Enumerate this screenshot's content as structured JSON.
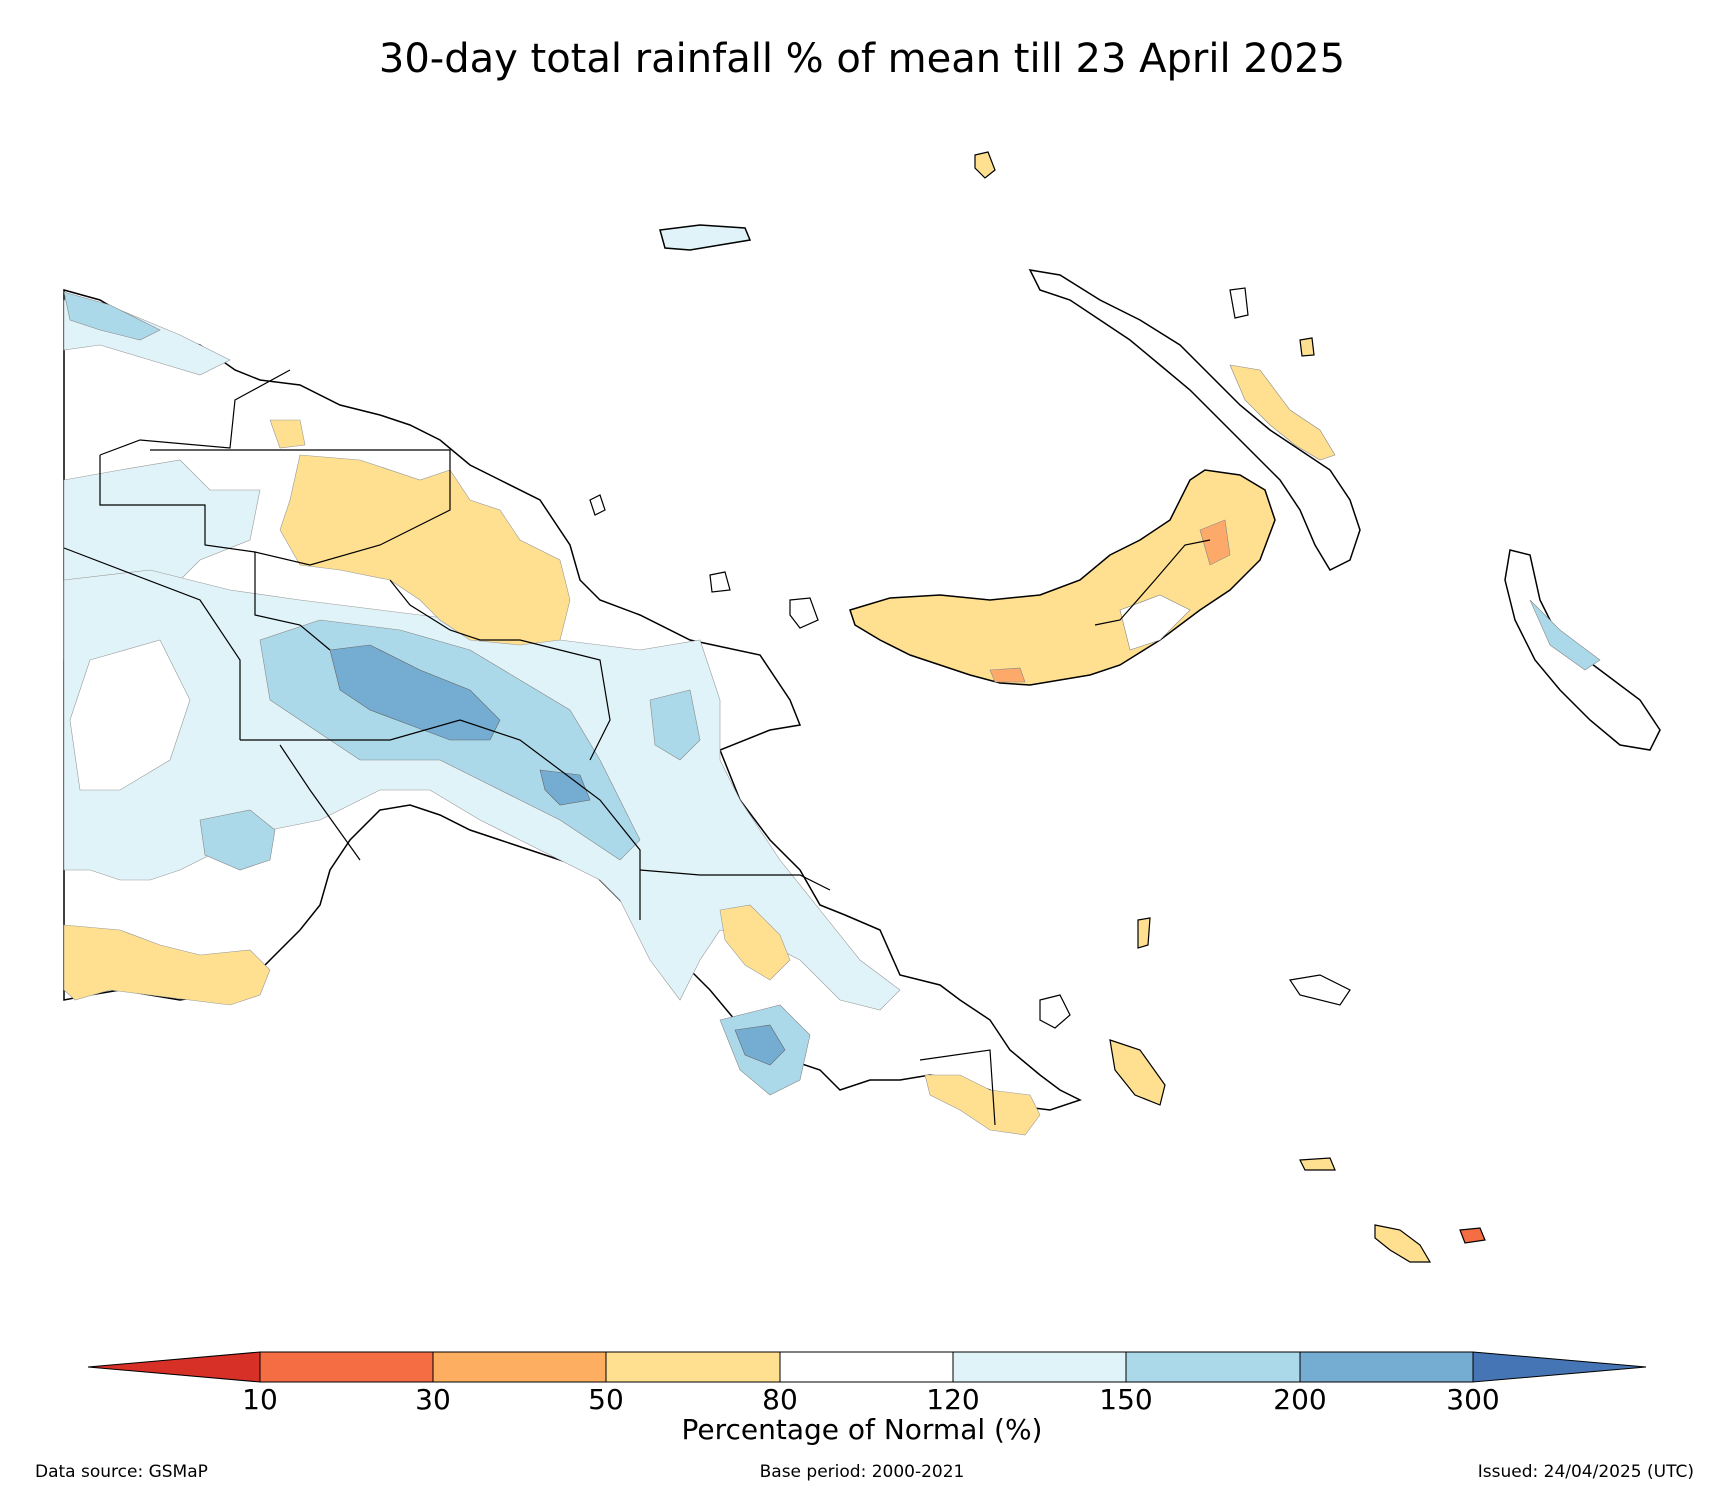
{
  "title": "30-day total rainfall % of mean till 23 April 2025",
  "colorbar": {
    "label": "Percentage of Normal (%)",
    "ticks": [
      "10",
      "30",
      "50",
      "80",
      "120",
      "150",
      "200",
      "300"
    ],
    "colors": {
      "lt10": "#d73027",
      "10_30": "#f46d43",
      "30_50": "#fdae61",
      "50_80": "#fee090",
      "80_120": "#ffffff",
      "120_150": "#e0f3f8",
      "150_200": "#abd9e9",
      "200_300": "#74add1",
      "gt300": "#4575b4"
    }
  },
  "footer": {
    "source": "Data source: GSMaP",
    "base": "Base period: 2000-2021",
    "issued": "Issued: 24/04/2025 (UTC)"
  }
}
